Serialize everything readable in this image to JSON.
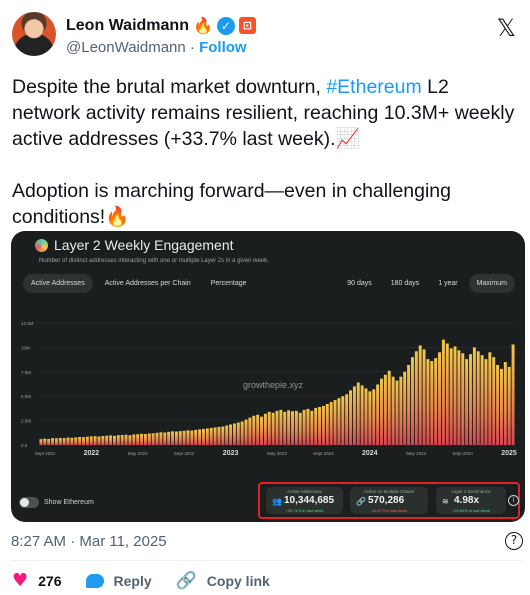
{
  "author": {
    "name": "Leon Waidmann",
    "name_emoji": "🔥",
    "verified_glyph": "✓",
    "org_badge_glyph": "⊡",
    "handle": "@LeonWaidmann",
    "separator": "·",
    "follow_label": "Follow"
  },
  "x_logo": "𝕏",
  "tweet": {
    "part1": "Despite the brutal market downturn, ",
    "hashtag": "#Ethereum",
    "part2": " L2 network activity remains resilient, reaching 10.3M+ weekly active addresses (+33.7% last week).",
    "emoji1": "📈",
    "part3": "\n\nAdoption is marching forward—even in challenging conditions!",
    "emoji2": "🔥"
  },
  "card": {
    "title": "Layer 2 Weekly Engagement",
    "subtitle": "Number of distinct addresses interacting with one or multiple Layer 2s in a given week.",
    "tabs_left": [
      "Active Addresses",
      "Active Addresses per Chain",
      "Percentage"
    ],
    "tabs_right": [
      "90 days",
      "180 days",
      "1 year",
      "Maximum"
    ],
    "active_tab": "Active Addresses",
    "active_range": "Maximum",
    "watermark": "growthepie.xyz",
    "toggle_label": "Show Ethereum",
    "stats": [
      {
        "label": "Active Addresses",
        "value": "10,344,685",
        "change": "+33.71% in last week",
        "icon": "👥",
        "negative": false
      },
      {
        "label": "Active on Multiple Chains",
        "value": "570,286",
        "change": "-11.47% in last week",
        "icon": "🔗",
        "negative": true
      },
      {
        "label": "Layer 2 Dominance",
        "value": "4.98x",
        "change": "+26.69% in last week",
        "icon": "≋",
        "negative": false
      }
    ],
    "info_glyph": "i"
  },
  "chart_data": {
    "type": "bar",
    "y_ticks": [
      "0.0",
      "2.5M",
      "5.0M",
      "7.5M",
      "10M",
      "12.5M"
    ],
    "ylim": [
      0,
      12500000
    ],
    "x_ticks": [
      "Sept 2021",
      "2022",
      "May 2022",
      "Sept 2022",
      "2023",
      "May 2023",
      "Sept 2023",
      "2024",
      "May 2024",
      "Sept 2024",
      "2025"
    ],
    "x_ticks_major": [
      "2022",
      "2023",
      "2024",
      "2025"
    ],
    "values": [
      600000,
      650000,
      620000,
      700000,
      680000,
      720000,
      700000,
      760000,
      740000,
      780000,
      820000,
      800000,
      850000,
      880000,
      900000,
      870000,
      920000,
      950000,
      980000,
      940000,
      1000000,
      1020000,
      1050000,
      1000000,
      1080000,
      1100000,
      1150000,
      1120000,
      1180000,
      1200000,
      1250000,
      1300000,
      1280000,
      1350000,
      1400000,
      1380000,
      1420000,
      1450000,
      1500000,
      1480000,
      1550000,
      1600000,
      1650000,
      1700000,
      1750000,
      1800000,
      1850000,
      1900000,
      2000000,
      2100000,
      2200000,
      2300000,
      2400000,
      2600000,
      2800000,
      3000000,
      3100000,
      2900000,
      3200000,
      3400000,
      3300000,
      3500000,
      3600000,
      3400000,
      3550000,
      3450000,
      3500000,
      3300000,
      3600000,
      3700000,
      3500000,
      3800000,
      3900000,
      4000000,
      4200000,
      4400000,
      4600000,
      4800000,
      5000000,
      5200000,
      5600000,
      6000000,
      6400000,
      6100000,
      5800000,
      5500000,
      5700000,
      6200000,
      6800000,
      7200000,
      7600000,
      7000000,
      6600000,
      7000000,
      7500000,
      8200000,
      9000000,
      9600000,
      10200000,
      9800000,
      8800000,
      8600000,
      8900000,
      9500000,
      10800000,
      10400000,
      9900000,
      10100000,
      9700000,
      9400000,
      8800000,
      9300000,
      10000000,
      9600000,
      9200000,
      8800000,
      9500000,
      9000000,
      8200000,
      7800000,
      8500000,
      8000000,
      10300000
    ]
  },
  "timestamp": "8:27 AM · Mar 11, 2025",
  "help_glyph": "?",
  "actions": {
    "like_icon": "♥",
    "like_count": "276",
    "reply_label": "Reply",
    "link_icon": "🔗",
    "copy_label": "Copy link"
  }
}
